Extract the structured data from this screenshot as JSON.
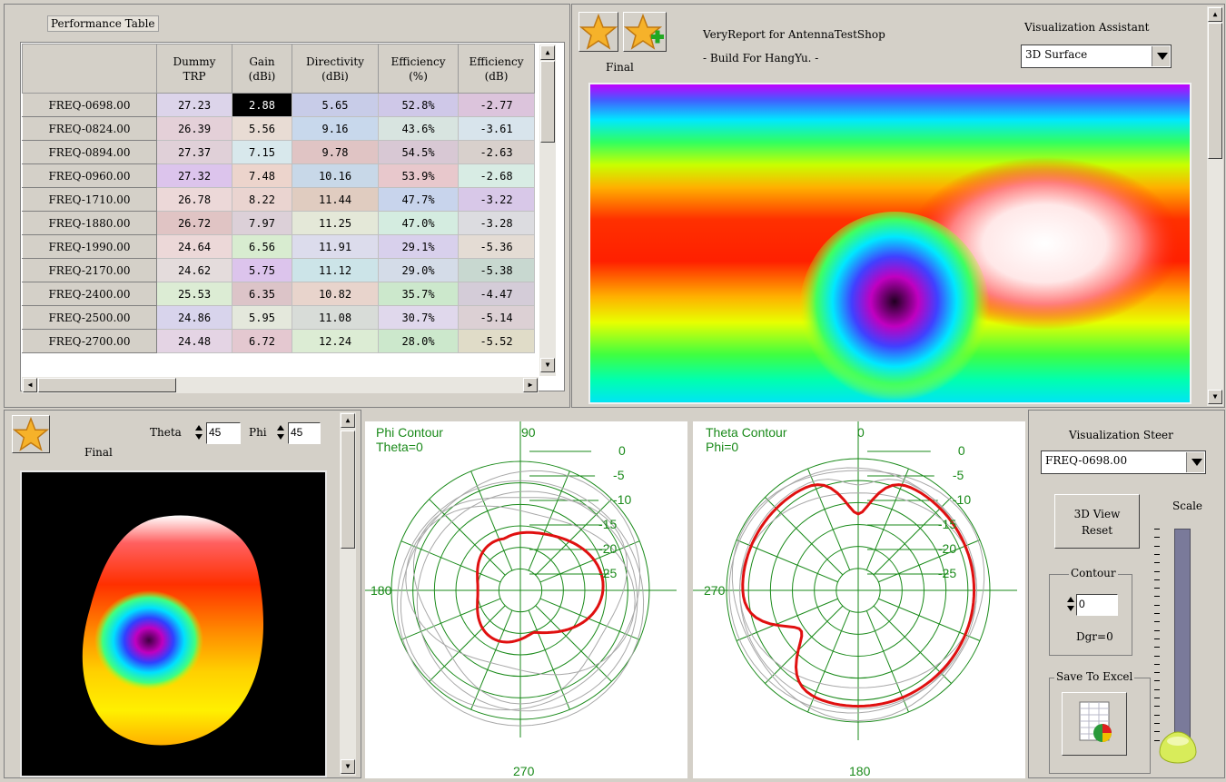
{
  "performance": {
    "title": "Performance Table",
    "columns": [
      "",
      "Dummy\nTRP",
      "Gain\n(dBi)",
      "Directivity\n(dBi)",
      "Efficiency\n(%)",
      "Efficiency\n(dB)"
    ],
    "rows": [
      {
        "freq": "FREQ-0698.00",
        "trp": "27.23",
        "gain": "2.88",
        "dir": "5.65",
        "eff_pct": "52.8%",
        "eff_db": "-2.77",
        "c": [
          "#dcd4ea",
          "#000000",
          "#c8cce8",
          "#cfc8e8",
          "#dcc4dc"
        ]
      },
      {
        "freq": "FREQ-0824.00",
        "trp": "26.39",
        "gain": "5.56",
        "dir": "9.16",
        "eff_pct": "43.6%",
        "eff_db": "-3.61",
        "c": [
          "#e4d0d8",
          "#e8dcd4",
          "#c8d8ec",
          "#d8e4e0",
          "#d8e4ec"
        ]
      },
      {
        "freq": "FREQ-0894.00",
        "trp": "27.37",
        "gain": "7.15",
        "dir": "9.78",
        "eff_pct": "54.5%",
        "eff_db": "-2.63",
        "c": [
          "#e0d0d8",
          "#d8e8ec",
          "#e0c4c4",
          "#d8c8d4",
          "#d8d0cc"
        ]
      },
      {
        "freq": "FREQ-0960.00",
        "trp": "27.32",
        "gain": "7.48",
        "dir": "10.16",
        "eff_pct": "53.9%",
        "eff_db": "-2.68",
        "c": [
          "#dcc4ec",
          "#ecd4cc",
          "#c8d8e8",
          "#e8c8cc",
          "#d8ece4"
        ]
      },
      {
        "freq": "FREQ-1710.00",
        "trp": "26.78",
        "gain": "8.22",
        "dir": "11.44",
        "eff_pct": "47.7%",
        "eff_db": "-3.22",
        "c": [
          "#ecd8d8",
          "#ead4d0",
          "#e0ccc0",
          "#c8d4ec",
          "#d8c8e8"
        ]
      },
      {
        "freq": "FREQ-1880.00",
        "trp": "26.72",
        "gain": "7.97",
        "dir": "11.25",
        "eff_pct": "47.0%",
        "eff_db": "-3.28",
        "c": [
          "#e0c4c4",
          "#dcd0d8",
          "#e4e8d8",
          "#d4ece0",
          "#dcdce0"
        ]
      },
      {
        "freq": "FREQ-1990.00",
        "trp": "24.64",
        "gain": "6.56",
        "dir": "11.91",
        "eff_pct": "29.1%",
        "eff_db": "-5.36",
        "c": [
          "#ecd8d8",
          "#d8ecd0",
          "#dcdcec",
          "#d8d0ec",
          "#e4dcd4"
        ]
      },
      {
        "freq": "FREQ-2170.00",
        "trp": "24.62",
        "gain": "5.75",
        "dir": "11.12",
        "eff_pct": "29.0%",
        "eff_db": "-5.38",
        "c": [
          "#e4dcdc",
          "#dcc4ec",
          "#cce4e8",
          "#d4dce8",
          "#c8d8d0"
        ]
      },
      {
        "freq": "FREQ-2400.00",
        "trp": "25.53",
        "gain": "6.35",
        "dir": "10.82",
        "eff_pct": "35.7%",
        "eff_db": "-4.47",
        "c": [
          "#dcecd4",
          "#dcc4c8",
          "#e8d4cc",
          "#cce8cc",
          "#d4ccd8"
        ]
      },
      {
        "freq": "FREQ-2500.00",
        "trp": "24.86",
        "gain": "5.95",
        "dir": "11.08",
        "eff_pct": "30.7%",
        "eff_db": "-5.14",
        "c": [
          "#d8d4ec",
          "#e4e8dc",
          "#d8dcd8",
          "#e0d8ec",
          "#dcd0d4"
        ]
      },
      {
        "freq": "FREQ-2700.00",
        "trp": "24.48",
        "gain": "6.72",
        "dir": "12.24",
        "eff_pct": "28.0%",
        "eff_db": "-5.52",
        "c": [
          "#e4d4e4",
          "#e4c8d0",
          "#dcecd4",
          "#cce8cc",
          "#e0dcc8"
        ]
      }
    ]
  },
  "header": {
    "line1": "VeryReport for AntennaTestShop",
    "line2": "- Build For HangYu. -",
    "final_label": "Final"
  },
  "vis_assistant": {
    "label": "Visualization Assistant",
    "value": "3D Surface"
  },
  "view3d": {
    "final_label": "Final",
    "theta_label": "Theta",
    "theta_value": "45",
    "phi_label": "Phi",
    "phi_value": "45"
  },
  "phi_contour": {
    "title": "Phi Contour",
    "sub": "Theta=0",
    "top": "90",
    "left": "180",
    "bottom": "270",
    "rings": [
      "0",
      "-5",
      "-10",
      "-15",
      "-20",
      "-25"
    ]
  },
  "theta_contour": {
    "title": "Theta Contour",
    "sub": "Phi=0",
    "top": "0",
    "left": "270",
    "bottom": "180",
    "rings": [
      "0",
      "-5",
      "-10",
      "-15",
      "-20",
      "-25"
    ]
  },
  "steer": {
    "label": "Visualization Steer",
    "freq": "FREQ-0698.00",
    "reset_line1": "3D View",
    "reset_line2": "Reset",
    "scale_label": "Scale",
    "contour_label": "Contour",
    "contour_value": "0",
    "dgr_label": "Dgr=0",
    "excel_label": "Save To Excel"
  },
  "colors": {
    "grid": "#1a8a1a",
    "trace": "#e01010",
    "gray_trace": "#a8a8a8"
  }
}
